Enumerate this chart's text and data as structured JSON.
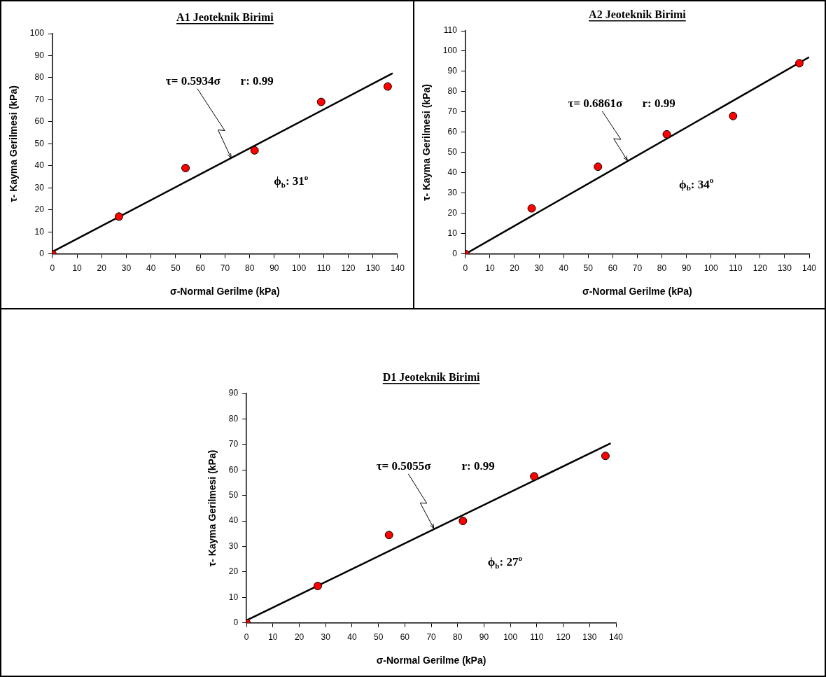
{
  "chart_data": [
    {
      "type": "scatter",
      "title": "A1 Jeoteknik Birimi",
      "xlabel": "σ-Normal Gerilme (kPa)",
      "ylabel": "τ- Kayma Gerilmesi (kPa)",
      "xlim": [
        0,
        140
      ],
      "xticks": [
        0,
        10,
        20,
        30,
        40,
        50,
        60,
        70,
        80,
        90,
        100,
        110,
        120,
        130,
        140
      ],
      "ylim": [
        0,
        100
      ],
      "yticks": [
        0,
        10,
        20,
        30,
        40,
        50,
        60,
        70,
        80,
        90,
        100
      ],
      "grid": false,
      "legend": false,
      "series": [
        {
          "color": "#ff0000",
          "marker": "circle",
          "x": [
            0,
            27,
            54,
            82,
            109,
            136
          ],
          "values": [
            0,
            17,
            39,
            47,
            69,
            76
          ]
        },
        {
          "type": "line",
          "color": "#000000",
          "marker": "none",
          "x": [
            0,
            138
          ],
          "values": [
            1,
            82
          ]
        }
      ],
      "annotations": [
        {
          "text": "τ= 0.5934σ",
          "x": 72.5,
          "y": 43.5
        },
        "r: 0.99",
        "ϕ$_{b}$: 31$^{o}$"
      ]
    },
    {
      "type": "scatter",
      "title": "A2 Jeoteknik Birimi",
      "xlabel": "σ-Normal Gerilme (kPa)",
      "ylabel": "τ- Kayma Gerilmesi (kPa)",
      "xlim": [
        0,
        140
      ],
      "xticks": [
        0,
        10,
        20,
        30,
        40,
        50,
        60,
        70,
        80,
        90,
        100,
        110,
        120,
        130,
        140
      ],
      "ylim": [
        0,
        110
      ],
      "yticks": [
        0,
        10,
        20,
        30,
        40,
        50,
        60,
        70,
        80,
        90,
        100,
        110
      ],
      "grid": false,
      "legend": false,
      "series": [
        {
          "color": "#ff0000",
          "marker": "circle",
          "x": [
            0,
            27,
            54,
            82,
            109,
            136
          ],
          "values": [
            0,
            22.5,
            43,
            59,
            68,
            94
          ]
        },
        {
          "type": "line",
          "color": "#000000",
          "marker": "none",
          "x": [
            0,
            140
          ],
          "values": [
            0,
            97
          ]
        }
      ],
      "annotations": [
        {
          "text": "τ= 0.6861σ",
          "x": 66,
          "y": 46
        },
        "r: 0.99",
        "ϕ$_{b}$: 34$^{o}$"
      ]
    },
    {
      "type": "scatter",
      "title": "D1 Jeoteknik Birimi",
      "xlabel": "σ-Normal Gerilme (kPa)",
      "ylabel": "τ- Kayma Gerilmesi (kPa)",
      "xlim": [
        0,
        140
      ],
      "xticks": [
        0,
        10,
        20,
        30,
        40,
        50,
        60,
        70,
        80,
        90,
        100,
        110,
        120,
        130,
        140
      ],
      "ylim": [
        0,
        90
      ],
      "yticks": [
        0,
        10,
        20,
        30,
        40,
        50,
        60,
        70,
        80,
        90
      ],
      "grid": false,
      "legend": false,
      "series": [
        {
          "color": "#ff0000",
          "marker": "circle",
          "x": [
            0,
            27,
            54,
            82,
            109,
            136
          ],
          "values": [
            0,
            14.5,
            34.5,
            40,
            57.5,
            65.5
          ]
        },
        {
          "type": "line",
          "color": "#000000",
          "marker": "none",
          "x": [
            0,
            138
          ],
          "values": [
            1,
            70.5
          ]
        }
      ],
      "annotations": [
        {
          "text": "τ= 0.5055σ",
          "x": 71,
          "y": 37
        },
        "r: 0.99",
        "ϕ$_{b}$: 27$^{o}$"
      ]
    }
  ]
}
